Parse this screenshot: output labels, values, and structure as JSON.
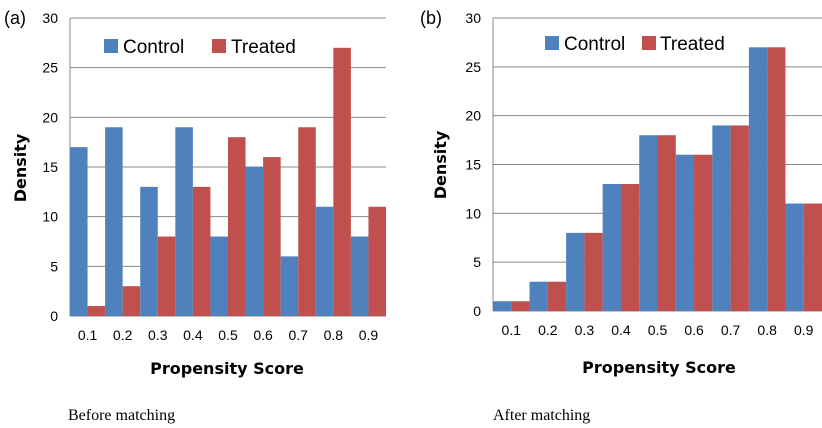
{
  "colors": {
    "control": "#4f81bd",
    "treated": "#c0504d",
    "grid": "#888888"
  },
  "chart_data": [
    {
      "type": "bar",
      "panel_label": "(a)",
      "categories": [
        "0.1",
        "0.2",
        "0.3",
        "0.4",
        "0.5",
        "0.6",
        "0.7",
        "0.8",
        "0.9"
      ],
      "series": [
        {
          "name": "Control",
          "values": [
            17,
            19,
            13,
            19,
            8,
            15,
            6,
            11,
            8
          ]
        },
        {
          "name": "Treated",
          "values": [
            1,
            3,
            8,
            13,
            18,
            16,
            19,
            27,
            11
          ]
        }
      ],
      "xlabel": "Propensity Score",
      "ylabel": "Density",
      "ylim": [
        0,
        30
      ],
      "yticks": [
        0,
        5,
        10,
        15,
        20,
        25,
        30
      ],
      "grid": true,
      "legend_position": "top",
      "caption": "Before matching"
    },
    {
      "type": "bar",
      "panel_label": "(b)",
      "categories": [
        "0.1",
        "0.2",
        "0.3",
        "0.4",
        "0.5",
        "0.6",
        "0.7",
        "0.8",
        "0.9"
      ],
      "series": [
        {
          "name": "Control",
          "values": [
            1,
            3,
            8,
            13,
            18,
            16,
            19,
            27,
            11
          ]
        },
        {
          "name": "Treated",
          "values": [
            1,
            3,
            8,
            13,
            18,
            16,
            19,
            27,
            11
          ]
        }
      ],
      "xlabel": "Propensity Score",
      "ylabel": "Density",
      "ylim": [
        0,
        30
      ],
      "yticks": [
        0,
        5,
        10,
        15,
        20,
        25,
        30
      ],
      "grid": true,
      "legend_position": "top",
      "caption": "After matching"
    }
  ]
}
